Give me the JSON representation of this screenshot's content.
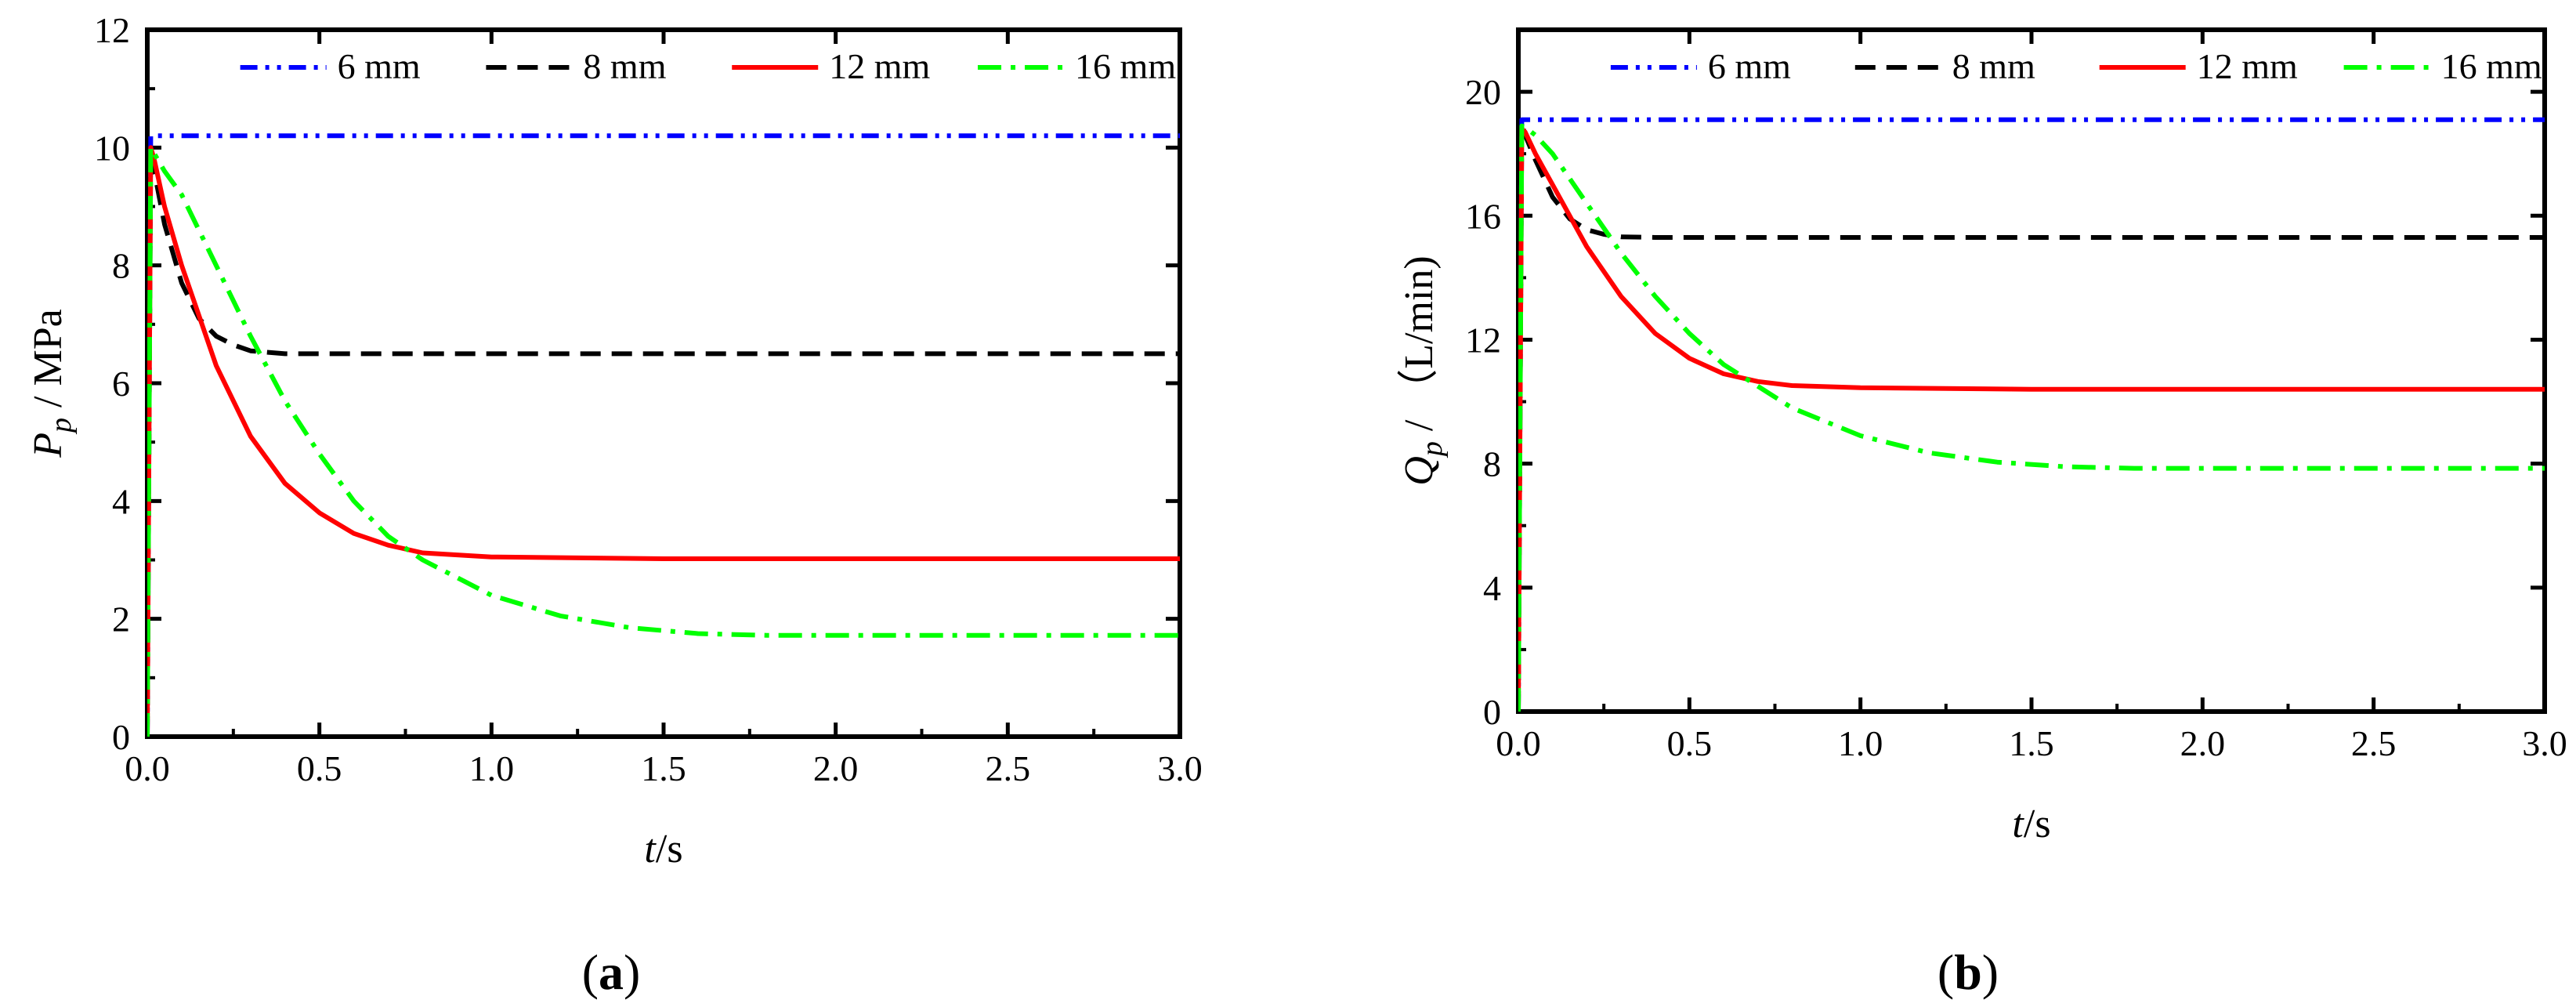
{
  "series_meta": [
    {
      "name": "6 mm",
      "color": "#0000ff",
      "dash": "dashdotdot"
    },
    {
      "name": "8 mm",
      "color": "#000000",
      "dash": "dash"
    },
    {
      "name": "12 mm",
      "color": "#ff0000",
      "dash": "solid"
    },
    {
      "name": "16 mm",
      "color": "#00ff00",
      "dash": "dashdot"
    }
  ],
  "chart_data": [
    {
      "type": "line",
      "panel": "a",
      "panel_label": {
        "pre": "(",
        "letter": "a",
        "post": ")"
      },
      "xlabel": {
        "var": "t",
        "unit": "/s"
      },
      "ylabel": {
        "var": "P",
        "sub": "p",
        "unit": " / MPa"
      },
      "xlim": [
        0,
        3.0
      ],
      "ylim": [
        0,
        12
      ],
      "xticks": [
        "0.0",
        "0.5",
        "1.0",
        "1.5",
        "2.0",
        "2.5",
        "3.0"
      ],
      "yticks": [
        "0",
        "2",
        "4",
        "6",
        "8",
        "10",
        "12"
      ],
      "legend_position": "top",
      "series": [
        {
          "name": "6 mm",
          "x": [
            0,
            0.01,
            0.02,
            3.0
          ],
          "y": [
            0,
            10.2,
            10.2,
            10.2
          ]
        },
        {
          "name": "8 mm",
          "x": [
            0,
            0.01,
            0.02,
            0.05,
            0.1,
            0.15,
            0.2,
            0.25,
            0.3,
            0.4,
            0.5,
            1.0,
            3.0
          ],
          "y": [
            0,
            10.0,
            9.6,
            8.7,
            7.7,
            7.1,
            6.8,
            6.65,
            6.55,
            6.5,
            6.5,
            6.5,
            6.5
          ]
        },
        {
          "name": "12 mm",
          "x": [
            0,
            0.01,
            0.02,
            0.05,
            0.1,
            0.2,
            0.3,
            0.4,
            0.5,
            0.6,
            0.7,
            0.8,
            1.0,
            1.5,
            2.0,
            3.0
          ],
          "y": [
            0,
            10.0,
            9.8,
            9.0,
            8.0,
            6.3,
            5.1,
            4.3,
            3.8,
            3.45,
            3.25,
            3.12,
            3.05,
            3.02,
            3.02,
            3.02
          ]
        },
        {
          "name": "16 mm",
          "x": [
            0,
            0.01,
            0.02,
            0.05,
            0.1,
            0.2,
            0.3,
            0.4,
            0.5,
            0.6,
            0.7,
            0.8,
            1.0,
            1.2,
            1.4,
            1.6,
            1.8,
            2.0,
            2.5,
            3.0
          ],
          "y": [
            0,
            10.0,
            9.9,
            9.6,
            9.2,
            8.0,
            6.8,
            5.7,
            4.8,
            4.0,
            3.4,
            3.0,
            2.4,
            2.05,
            1.85,
            1.75,
            1.72,
            1.72,
            1.72,
            1.72
          ]
        }
      ]
    },
    {
      "type": "line",
      "panel": "b",
      "panel_label": {
        "pre": "(",
        "letter": "b",
        "post": ")"
      },
      "xlabel": {
        "var": "t",
        "unit": "/s"
      },
      "ylabel": {
        "var": "Q",
        "sub": "p",
        "unit": " / （L/min)"
      },
      "xlim": [
        0,
        3.0
      ],
      "ylim": [
        0,
        22
      ],
      "xticks": [
        "0.0",
        "0.5",
        "1.0",
        "1.5",
        "2.0",
        "2.5",
        "3.0"
      ],
      "yticks": [
        "0",
        "4",
        "8",
        "12",
        "16",
        "20"
      ],
      "legend_position": "top",
      "series": [
        {
          "name": "6 mm",
          "x": [
            0,
            0.01,
            0.02,
            3.0
          ],
          "y": [
            0,
            19.1,
            19.1,
            19.1
          ]
        },
        {
          "name": "8 mm",
          "x": [
            0,
            0.01,
            0.02,
            0.05,
            0.1,
            0.15,
            0.2,
            0.25,
            0.3,
            0.4,
            0.5,
            1.0,
            3.0
          ],
          "y": [
            0,
            19.0,
            18.6,
            17.8,
            16.6,
            15.9,
            15.55,
            15.4,
            15.32,
            15.3,
            15.3,
            15.3,
            15.3
          ]
        },
        {
          "name": "12 mm",
          "x": [
            0,
            0.01,
            0.02,
            0.05,
            0.1,
            0.2,
            0.3,
            0.4,
            0.5,
            0.6,
            0.7,
            0.8,
            1.0,
            1.5,
            2.0,
            3.0
          ],
          "y": [
            0,
            18.8,
            18.7,
            18.0,
            17.0,
            15.0,
            13.4,
            12.2,
            11.4,
            10.9,
            10.65,
            10.52,
            10.45,
            10.4,
            10.4,
            10.4
          ]
        },
        {
          "name": "16 mm",
          "x": [
            0,
            0.01,
            0.02,
            0.05,
            0.1,
            0.2,
            0.3,
            0.4,
            0.5,
            0.6,
            0.8,
            1.0,
            1.2,
            1.4,
            1.6,
            1.8,
            2.0,
            3.0
          ],
          "y": [
            0,
            18.9,
            18.85,
            18.6,
            18.0,
            16.4,
            14.8,
            13.4,
            12.2,
            11.2,
            9.8,
            8.9,
            8.35,
            8.05,
            7.9,
            7.85,
            7.85,
            7.85
          ]
        }
      ]
    }
  ]
}
